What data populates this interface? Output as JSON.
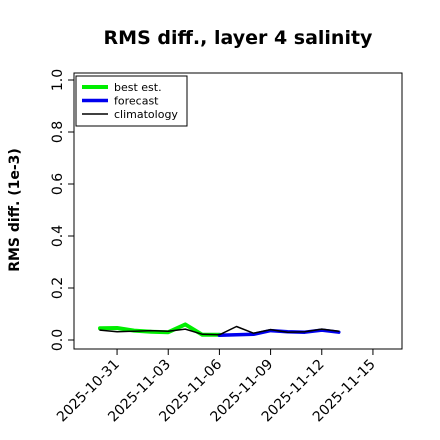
{
  "chart_data": {
    "type": "line",
    "title": "RMS diff., layer 4 salinity",
    "xlabel": "",
    "ylabel": "RMS diff. (1e-3)",
    "ylim": [
      0.0,
      1.0
    ],
    "yticks": [
      0.0,
      0.2,
      0.4,
      0.6,
      0.8,
      1.0
    ],
    "ytick_labels": [
      "0.0",
      "0.2",
      "0.4",
      "0.6",
      "0.8",
      "1.0"
    ],
    "xlim": [
      "2025-10-30",
      "2025-11-16"
    ],
    "xticks": [
      "2025-10-31",
      "2025-11-03",
      "2025-11-06",
      "2025-11-09",
      "2025-11-12",
      "2025-11-15"
    ],
    "highlight_tick": "2025-11-06",
    "highlight_color": "#228b22",
    "grid": false,
    "legend_position": "top-left",
    "series": [
      {
        "name": "best est.",
        "color": "#00ee00",
        "x": [
          "2025-10-30",
          "2025-10-31",
          "2025-11-01",
          "2025-11-02",
          "2025-11-03",
          "2025-11-04",
          "2025-11-05",
          "2025-11-06"
        ],
        "values": [
          0.045,
          0.046,
          0.036,
          0.032,
          0.03,
          0.06,
          0.02,
          0.02
        ]
      },
      {
        "name": "forecast",
        "color": "#0000ee",
        "x": [
          "2025-11-06",
          "2025-11-07",
          "2025-11-08",
          "2025-11-09",
          "2025-11-10",
          "2025-11-11",
          "2025-11-12",
          "2025-11-13"
        ],
        "values": [
          0.018,
          0.02,
          0.022,
          0.036,
          0.032,
          0.03,
          0.038,
          0.03
        ]
      },
      {
        "name": "climatology",
        "color": "#000000",
        "x": [
          "2025-10-30",
          "2025-10-31",
          "2025-11-01",
          "2025-11-02",
          "2025-11-03",
          "2025-11-04",
          "2025-11-05",
          "2025-11-06",
          "2025-11-07",
          "2025-11-08",
          "2025-11-09",
          "2025-11-10",
          "2025-11-11",
          "2025-11-12",
          "2025-11-13"
        ],
        "values": [
          0.038,
          0.032,
          0.034,
          0.036,
          0.034,
          0.042,
          0.022,
          0.02,
          0.052,
          0.026,
          0.04,
          0.03,
          0.032,
          0.042,
          0.034
        ]
      }
    ]
  }
}
